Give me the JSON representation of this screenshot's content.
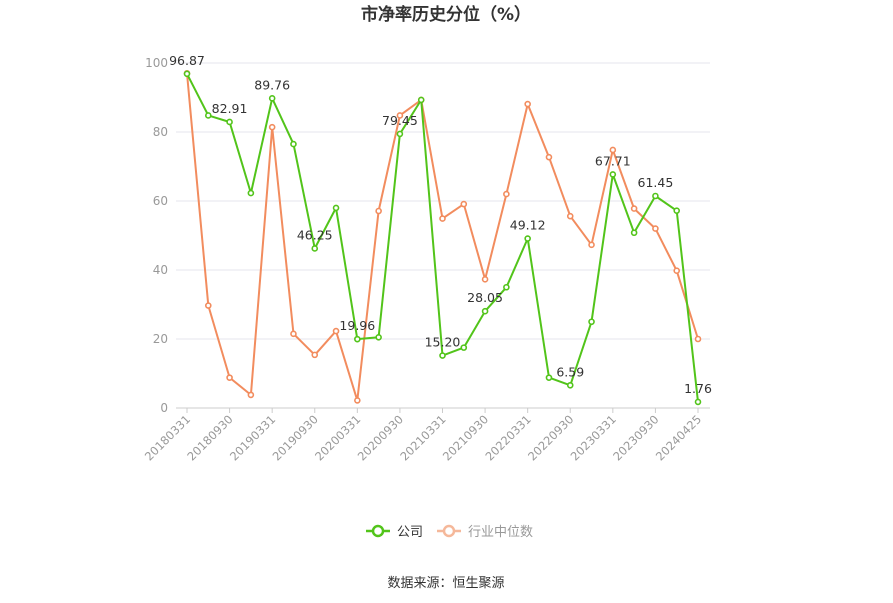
{
  "title": "市净率历史分位（%）",
  "source": "数据来源：恒生聚源",
  "chart_data": {
    "type": "line",
    "title": "市净率历史分位（%）",
    "ylim": [
      0,
      100
    ],
    "yticks": [
      0,
      20,
      40,
      60,
      80,
      100
    ],
    "grid": true,
    "legend_position": "bottom",
    "x_tick_labels": [
      "20180331",
      "20180930",
      "20190331",
      "20190930",
      "20200331",
      "20200930",
      "20210331",
      "20210930",
      "20220331",
      "20220930",
      "20230331",
      "20230930",
      "20240425"
    ],
    "x": [
      "20180331",
      "20180630",
      "20180930",
      "20181231",
      "20190331",
      "20190630",
      "20190930",
      "20191231",
      "20200331",
      "20200630",
      "20200930",
      "20201231",
      "20210331",
      "20210630",
      "20210930",
      "20211231",
      "20220331",
      "20220630",
      "20220930",
      "20221231",
      "20230331",
      "20230630",
      "20230930",
      "20231231",
      "20240425"
    ],
    "series": [
      {
        "name": "公司",
        "color": "#52c41a",
        "values": [
          96.87,
          84.8,
          82.91,
          62.3,
          89.76,
          76.5,
          46.25,
          58.0,
          19.96,
          20.5,
          79.45,
          89.3,
          15.2,
          17.5,
          28.05,
          35.0,
          49.12,
          8.8,
          6.59,
          25.0,
          67.71,
          50.8,
          61.45,
          57.2,
          1.76
        ],
        "labels": [
          "96.87",
          "",
          "82.91",
          "",
          "89.76",
          "",
          "46.25",
          "",
          "19.96",
          "",
          "79.45",
          "",
          "15.20",
          "",
          "28.05",
          "",
          "49.12",
          "",
          "6.59",
          "",
          "67.71",
          "",
          "61.45",
          "",
          "1.76"
        ]
      },
      {
        "name": "行业中位数",
        "color": "#f28c5e",
        "values": [
          97.0,
          29.7,
          8.8,
          3.8,
          81.4,
          21.5,
          15.4,
          22.3,
          2.2,
          57.1,
          84.8,
          89.3,
          54.9,
          59.1,
          37.3,
          62.0,
          88.1,
          72.7,
          55.6,
          47.3,
          74.8,
          57.8,
          52.0,
          39.8,
          20.0
        ]
      }
    ]
  }
}
